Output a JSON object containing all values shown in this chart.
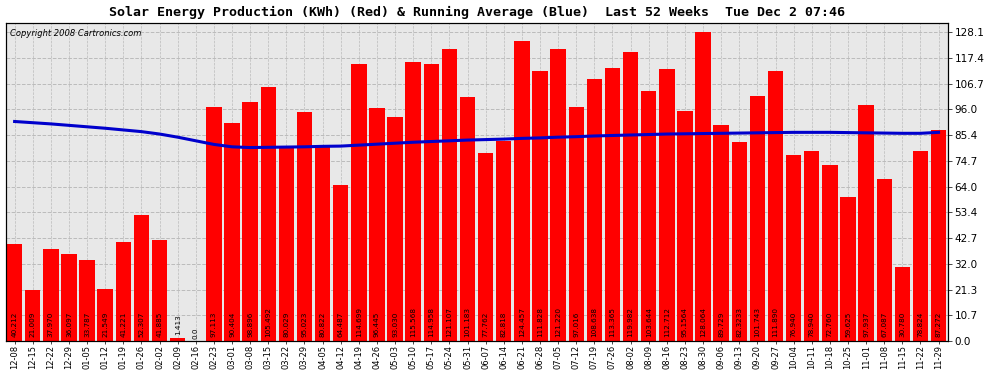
{
  "title": "Solar Energy Production (KWh) (Red) & Running Average (Blue)  Last 52 Weeks  Tue Dec 2 07:46",
  "copyright": "Copyright 2008 Cartronics.com",
  "bar_color": "#ff0000",
  "avg_line_color": "#0000cc",
  "background_color": "#ffffff",
  "plot_bg_color": "#e8e8e8",
  "grid_color": "#bbbbbb",
  "categories": [
    "12-08",
    "12-15",
    "12-22",
    "12-29",
    "01-05",
    "01-12",
    "01-19",
    "01-26",
    "02-02",
    "02-09",
    "02-16",
    "02-23",
    "03-01",
    "03-08",
    "03-15",
    "03-22",
    "03-29",
    "04-05",
    "04-12",
    "04-19",
    "04-26",
    "05-03",
    "05-10",
    "05-17",
    "05-24",
    "05-31",
    "06-07",
    "06-14",
    "06-21",
    "06-28",
    "07-05",
    "07-12",
    "07-19",
    "07-26",
    "08-02",
    "08-09",
    "08-16",
    "08-23",
    "08-30",
    "09-06",
    "09-13",
    "09-20",
    "09-27",
    "10-04",
    "10-11",
    "10-18",
    "10-25",
    "11-01",
    "11-08",
    "11-15",
    "11-22",
    "11-29"
  ],
  "values": [
    40.212,
    21.009,
    37.97,
    36.097,
    33.787,
    21.549,
    41.221,
    52.307,
    41.885,
    1.413,
    0.0,
    97.113,
    90.404,
    98.896,
    105.492,
    80.029,
    95.023,
    80.822,
    64.487,
    114.699,
    96.445,
    93.03,
    115.568,
    114.958,
    121.107,
    101.183,
    77.762,
    82.818,
    124.457,
    111.828,
    121.22,
    97.016,
    108.638,
    113.365,
    119.982,
    103.644,
    112.712,
    95.156,
    128.064,
    89.729,
    82.323,
    101.743,
    111.89,
    76.94,
    78.94,
    72.76,
    59.625,
    97.937,
    67.087,
    30.78,
    78.824,
    87.272
  ],
  "value_labels": [
    "40.212",
    "21.009",
    "37.970",
    "36.097",
    "33.787",
    "21.549",
    "41.221",
    "52.307",
    "41.885",
    "1.413",
    "0.0",
    "97.113",
    "90.404",
    "98.896",
    "105.492",
    "80.029",
    "95.023",
    "80.822",
    "64.487",
    "114.699",
    "96.445",
    "93.030",
    "115.568",
    "114.958",
    "121.107",
    "101.183",
    "77.762",
    "82.818",
    "124.457",
    "111.828",
    "121.220",
    "97.016",
    "108.638",
    "113.365",
    "119.982",
    "103.644",
    "112.712",
    "95.1564",
    "128.064",
    "89.729",
    "82.3233",
    "101.743",
    "111.890",
    "76.940",
    "78.940",
    "72.760",
    "59.625",
    "97.937",
    "67.087",
    "30.780",
    "78.824",
    "87.272"
  ],
  "running_avg": [
    91.0,
    90.5,
    90.0,
    89.4,
    88.8,
    88.2,
    87.5,
    86.8,
    85.8,
    84.5,
    83.0,
    81.5,
    80.5,
    80.2,
    80.3,
    80.4,
    80.5,
    80.7,
    80.8,
    81.2,
    81.6,
    82.0,
    82.4,
    82.7,
    83.0,
    83.3,
    83.5,
    83.7,
    84.0,
    84.2,
    84.5,
    84.7,
    85.0,
    85.2,
    85.4,
    85.6,
    85.8,
    85.9,
    86.0,
    86.1,
    86.2,
    86.3,
    86.4,
    86.5,
    86.5,
    86.5,
    86.4,
    86.3,
    86.2,
    86.1,
    86.1,
    86.5
  ],
  "yticks": [
    0.0,
    10.7,
    21.3,
    32.0,
    42.7,
    53.4,
    64.0,
    74.7,
    85.4,
    96.0,
    106.7,
    117.4,
    128.1
  ],
  "ylim": [
    0,
    132
  ],
  "figsize": [
    9.9,
    3.75
  ],
  "dpi": 100
}
